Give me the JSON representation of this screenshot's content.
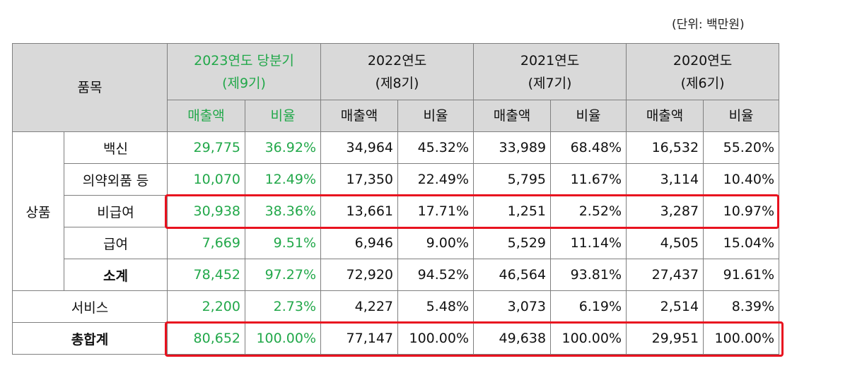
{
  "unit_label": "(단위: 백만원)",
  "header": {
    "item_label": "품목",
    "periods": [
      {
        "year": "2023연도 당분기",
        "term": "(제9기)"
      },
      {
        "year": "2022연도",
        "term": "(제8기)"
      },
      {
        "year": "2021연도",
        "term": "(제7기)"
      },
      {
        "year": "2020연도",
        "term": "(제6기)"
      }
    ],
    "sales_label": "매출액",
    "ratio_label": "비율"
  },
  "group_label": "상품",
  "rows": [
    {
      "label": "백신",
      "values": [
        "29,775",
        "36.92%",
        "34,964",
        "45.32%",
        "33,989",
        "68.48%",
        "16,532",
        "55.20%"
      ]
    },
    {
      "label": "의약외품 등",
      "values": [
        "10,070",
        "12.49%",
        "17,350",
        "22.49%",
        "5,795",
        "11.67%",
        "3,114",
        "10.40%"
      ]
    },
    {
      "label": "비급여",
      "values": [
        "30,938",
        "38.36%",
        "13,661",
        "17.71%",
        "1,251",
        "2.52%",
        "3,287",
        "10.97%"
      ]
    },
    {
      "label": "급여",
      "values": [
        "7,669",
        "9.51%",
        "6,946",
        "9.00%",
        "5,529",
        "11.14%",
        "4,505",
        "15.04%"
      ]
    },
    {
      "label": "소계",
      "values": [
        "78,452",
        "97.27%",
        "72,920",
        "94.52%",
        "46,564",
        "93.81%",
        "27,437",
        "91.61%"
      ]
    }
  ],
  "service": {
    "label": "서비스",
    "values": [
      "2,200",
      "2.73%",
      "4,227",
      "5.48%",
      "3,073",
      "6.19%",
      "2,514",
      "8.39%"
    ]
  },
  "total": {
    "label": "총합계",
    "values": [
      "80,652",
      "100.00%",
      "77,147",
      "100.00%",
      "49,638",
      "100.00%",
      "29,951",
      "100.00%"
    ]
  },
  "colors": {
    "highlight_text": "#22a84a",
    "header_bg": "#d9d9d9",
    "annotation_box": "#e8121f"
  }
}
